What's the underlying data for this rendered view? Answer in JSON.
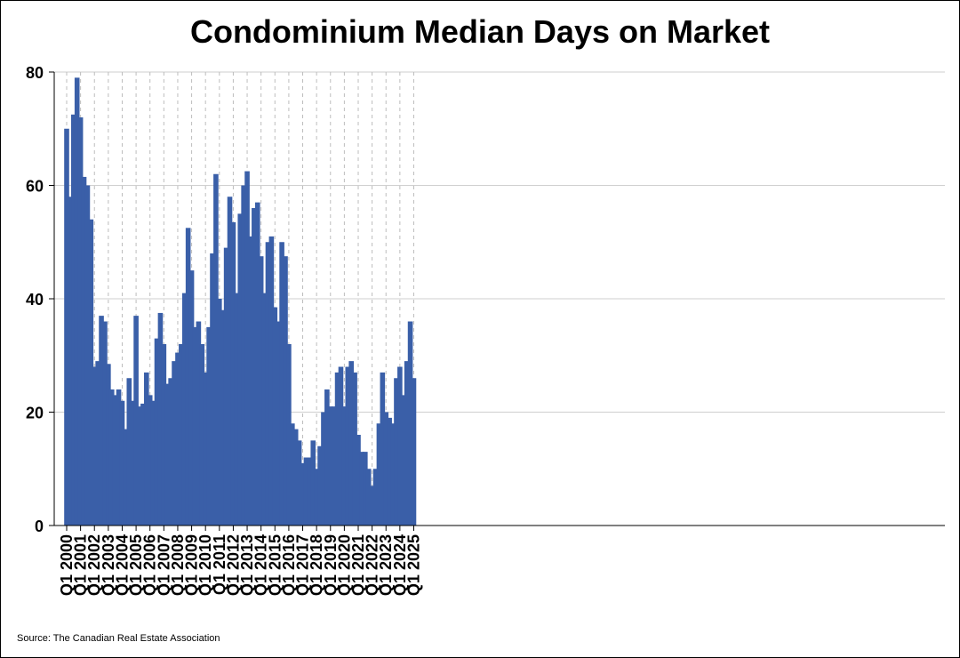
{
  "chart_data": {
    "type": "bar",
    "title": "Condominium Median Days on Market",
    "source": "Source: The Canadian Real Estate Association",
    "xlabel": "",
    "ylabel": "",
    "ylim": [
      0,
      80
    ],
    "y_ticks": [
      0,
      20,
      40,
      60,
      80
    ],
    "x_tick_labels": [
      "Q1 2000",
      "Q1 2001",
      "Q1 2002",
      "Q1 2003",
      "Q1 2004",
      "Q1 2005",
      "Q1 2006",
      "Q1 2007",
      "Q1 2008",
      "Q1 2009",
      "Q1 2010",
      "Q1 2011",
      "Q1 2012",
      "Q1 2013",
      "Q1 2014",
      "Q1 2015",
      "Q1 2016",
      "Q1 2017",
      "Q1 2018",
      "Q1 2019",
      "Q1 2020",
      "Q1 2021",
      "Q1 2022",
      "Q1 2023",
      "Q1 2024",
      "Q1 2025"
    ],
    "grid": {
      "horizontal": "solid",
      "vertical": "dashed"
    },
    "bar_color": "#3a5fa8",
    "values": [
      70,
      58,
      72.5,
      79,
      72,
      61.5,
      60,
      54,
      28,
      29,
      37,
      36,
      28.5,
      24,
      23,
      24,
      22,
      17,
      26,
      22,
      37,
      21,
      21.5,
      27,
      23,
      22,
      33,
      37.5,
      32,
      25,
      26,
      29,
      30.5,
      32,
      41,
      52.5,
      45,
      35,
      36,
      32,
      27,
      35,
      48,
      62,
      40,
      38,
      49,
      58,
      53.5,
      41,
      55,
      60,
      62.5,
      51,
      56,
      57,
      47.5,
      41,
      50,
      51,
      38.5,
      36,
      50,
      47.5,
      32,
      18,
      17,
      15,
      11,
      12,
      12,
      15,
      10,
      14,
      20,
      24,
      21,
      21,
      27,
      28,
      21,
      28,
      29,
      27,
      16,
      13,
      13,
      10,
      7,
      10,
      18,
      27,
      20,
      19,
      18,
      26,
      28,
      23,
      29,
      36,
      26
    ]
  }
}
